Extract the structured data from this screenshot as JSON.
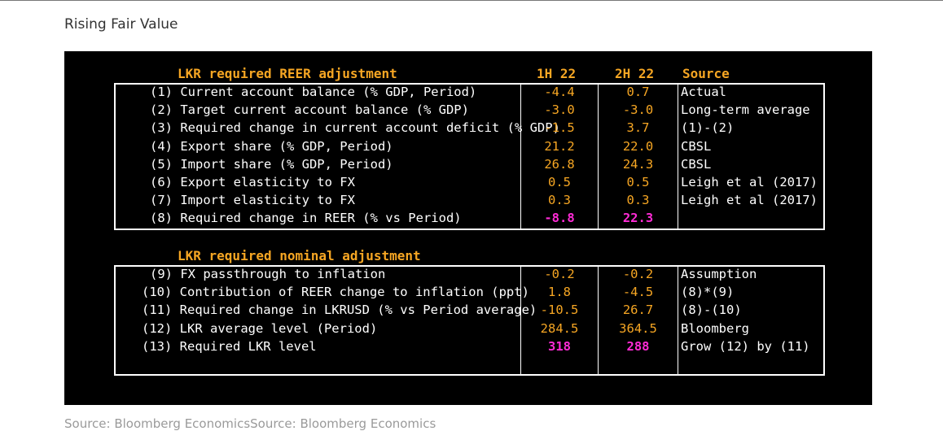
{
  "page_title": "Rising Fair Value",
  "colors": {
    "panel_bg": "#000000",
    "header": "#f6a623",
    "value": "#f6a623",
    "highlight": "#ff2bd6",
    "text": "#ffffff"
  },
  "table": {
    "section1_header": "LKR required REER adjustment",
    "col_1h": "1H 22",
    "col_2h": "2H 22",
    "col_source": "Source",
    "section1_rows": [
      {
        "label": "(1) Current account balance (% GDP, Period)",
        "v1": "-4.4",
        "v2": "0.7",
        "source": "Actual"
      },
      {
        "label": "(2) Target current account balance (% GDP)",
        "v1": "-3.0",
        "v2": "-3.0",
        "source": "Long-term average"
      },
      {
        "label": "(3) Required change in current account deficit (% GDP)",
        "v1": "-1.5",
        "v2": "3.7",
        "source": "(1)-(2)"
      },
      {
        "label": "(4) Export share (% GDP, Period)",
        "v1": "21.2",
        "v2": "22.0",
        "source": "CBSL"
      },
      {
        "label": "(5) Import share (% GDP, Period)",
        "v1": "26.8",
        "v2": "24.3",
        "source": "CBSL"
      },
      {
        "label": "(6) Export elasticity to FX",
        "v1": "0.5",
        "v2": "0.5",
        "source": "Leigh et al (2017)"
      },
      {
        "label": "(7) Import elasticity to FX",
        "v1": "0.3",
        "v2": "0.3",
        "source": "Leigh et al (2017)"
      },
      {
        "label": "(8) Required change in REER (% vs Period)",
        "v1": "-8.8",
        "v2": "22.3",
        "source": ""
      }
    ],
    "section2_header": "LKR required nominal adjustment",
    "section2_rows": [
      {
        "label": "(9) FX passthrough to inflation",
        "v1": "-0.2",
        "v2": "-0.2",
        "source": "Assumption"
      },
      {
        "label": "(10) Contribution of REER change to inflation (ppt)",
        "v1": "1.8",
        "v2": "-4.5",
        "source": "(8)*(9)"
      },
      {
        "label": "(11) Required change in LKRUSD (% vs Period average)",
        "v1": "-10.5",
        "v2": "26.7",
        "source": "(8)-(10)"
      },
      {
        "label": "(12) LKR average level (Period)",
        "v1": "284.5",
        "v2": "364.5",
        "source": "Bloomberg"
      },
      {
        "label": "(13) Required LKR level",
        "v1": "318",
        "v2": "288",
        "source": "Grow (12) by (11)"
      }
    ]
  },
  "footer": "Source: Bloomberg EconomicsSource: Bloomberg Economics"
}
